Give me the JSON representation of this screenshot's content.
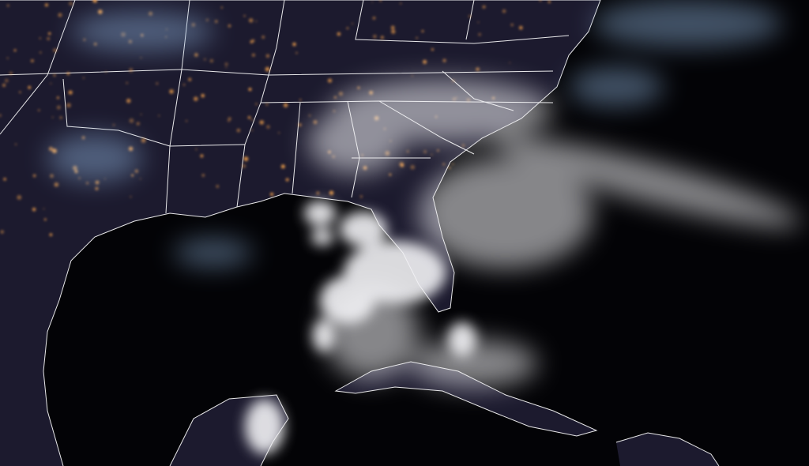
{
  "colors": {
    "ocean": "#030306",
    "land": "#1c1a2e",
    "borders": "#ffffff",
    "city_lights": "#e89a4a",
    "clouds": "#f2f2f5",
    "thin_clouds": "#8fb3dc"
  }
}
